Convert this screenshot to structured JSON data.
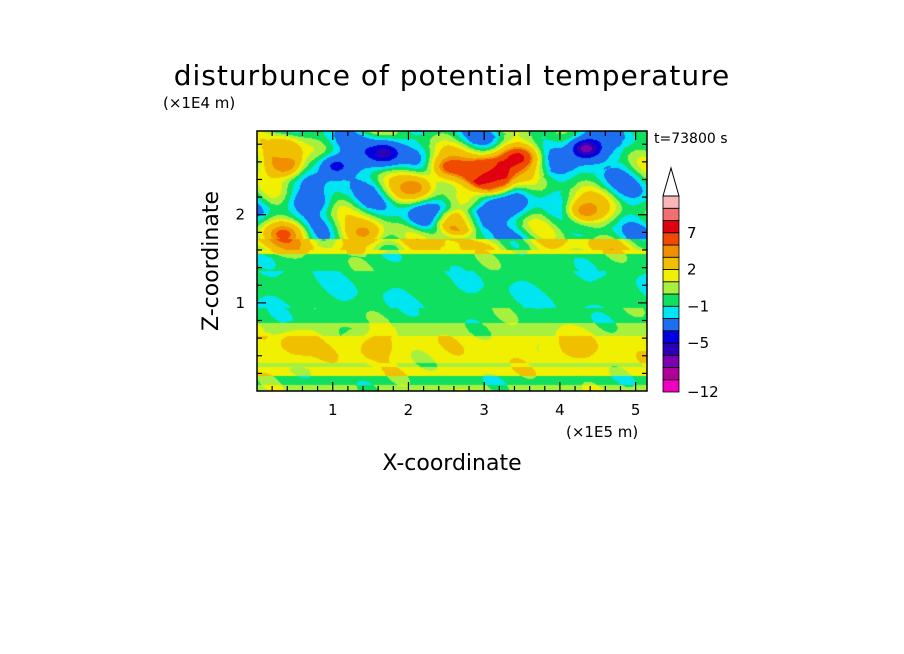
{
  "chart_data": {
    "type": "heatmap",
    "title": "disturbunce of potential temperature",
    "xlabel": "X-coordinate",
    "ylabel": "Z-coordinate",
    "x_unit": "(×1E5 m)",
    "y_unit": "(×1E4 m)",
    "time_label": "t=73800 s",
    "xlim": [
      0,
      5.15
    ],
    "ylim": [
      0,
      2.95
    ],
    "x_ticks": [
      "1",
      "2",
      "3",
      "4",
      "5"
    ],
    "y_ticks": [
      "1",
      "2"
    ],
    "colorbar": {
      "levels": [
        -12,
        -10,
        -8,
        -6,
        -5,
        -4,
        -2,
        -1,
        0,
        1,
        2,
        4,
        5,
        7,
        8,
        10
      ],
      "tick_labels": [
        "−12",
        "−5",
        "−1",
        "2",
        "7"
      ],
      "tick_values": [
        -12,
        -5,
        -1,
        2,
        7
      ],
      "colors": [
        "#f000c0",
        "#b0009a",
        "#7a00b0",
        "#2a00b8",
        "#0000e0",
        "#1e6ef0",
        "#00e6f0",
        "#10e060",
        "#a8f040",
        "#f0f000",
        "#f0c000",
        "#f09000",
        "#f04a00",
        "#e00010",
        "#f07070",
        "#f8b8b8"
      ],
      "extend": "max",
      "grid": false
    },
    "bands": [
      {
        "y0": 0.0,
        "y1": 0.07,
        "value": 0.5
      },
      {
        "y0": 0.07,
        "y1": 0.17,
        "value": -0.5
      },
      {
        "y0": 0.17,
        "y1": 0.27,
        "value": 1.5
      },
      {
        "y0": 0.27,
        "y1": 0.32,
        "value": 0.5
      },
      {
        "y0": 0.32,
        "y1": 0.62,
        "value": 1.5
      },
      {
        "y0": 0.62,
        "y1": 0.77,
        "value": 0.5
      },
      {
        "y0": 0.77,
        "y1": 0.94,
        "value": -0.5
      },
      {
        "y0": 0.94,
        "y1": 1.36,
        "value": -0.8
      },
      {
        "y0": 1.36,
        "y1": 1.55,
        "value": -0.5
      },
      {
        "y0": 1.55,
        "y1": 1.72,
        "value": 1.5
      },
      {
        "y0": 1.72,
        "y1": 2.95,
        "value": -0.8
      }
    ],
    "features": [
      {
        "x": 0.55,
        "z": 0.52,
        "value": 2.5
      },
      {
        "x": 1.55,
        "z": 0.49,
        "value": 2.5
      },
      {
        "x": 4.2,
        "z": 0.5,
        "value": 2.5
      },
      {
        "x": 0.6,
        "z": 1.2,
        "value": -0.9
      },
      {
        "x": 2.4,
        "z": 1.25,
        "value": -0.9
      },
      {
        "x": 4.6,
        "z": 1.2,
        "value": -0.9
      },
      {
        "x": 0.35,
        "z": 1.78,
        "value": 5.5
      },
      {
        "x": 1.4,
        "z": 1.8,
        "value": 4.5
      },
      {
        "x": 2.65,
        "z": 1.9,
        "value": 6.5
      },
      {
        "x": 2.05,
        "z": 2.3,
        "value": 5.0
      },
      {
        "x": 1.68,
        "z": 2.7,
        "value": -5.5
      },
      {
        "x": 1.05,
        "z": 2.55,
        "value": -4.5
      },
      {
        "x": 0.35,
        "z": 2.55,
        "value": 4.5
      },
      {
        "x": 2.25,
        "z": 2.0,
        "value": -4.5
      },
      {
        "x": 3.0,
        "z": 2.5,
        "value": 6.0
      },
      {
        "x": 3.1,
        "z": 2.4,
        "value": 8.5
      },
      {
        "x": 3.45,
        "z": 2.65,
        "value": 7.5
      },
      {
        "x": 2.55,
        "z": 2.55,
        "value": 5.5
      },
      {
        "x": 2.95,
        "z": 1.95,
        "value": -4.5
      },
      {
        "x": 4.35,
        "z": 2.75,
        "value": -6.5
      },
      {
        "x": 4.35,
        "z": 2.05,
        "value": 5.0
      },
      {
        "x": 0.35,
        "z": 2.75,
        "value": 3.5
      },
      {
        "x": 0.7,
        "z": 2.15,
        "value": -3.5
      },
      {
        "x": 3.3,
        "z": 2.15,
        "value": -4.0
      }
    ]
  }
}
